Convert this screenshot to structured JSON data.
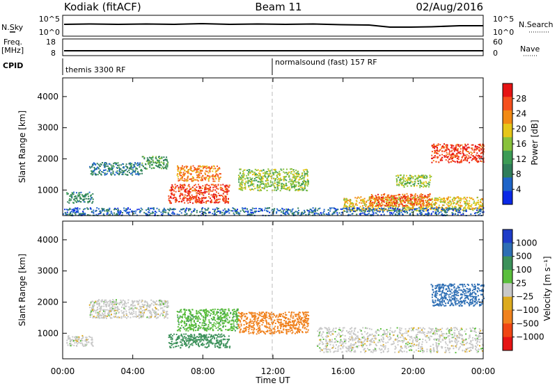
{
  "header": {
    "radar": "Kodiak  (fitACF)",
    "beam": "Beam 11",
    "date": "02/Aug/2016"
  },
  "strips": {
    "noise": {
      "left_label": "N.Sky",
      "left_ticks": [
        "10^5",
        "10^0"
      ],
      "right_ticks": [
        "10^5",
        "10^0"
      ],
      "right_label": "N.Search"
    },
    "freq": {
      "left_label_1": "Freq.",
      "left_label_2": "[MHz]",
      "left_ticks": [
        "18",
        "8"
      ],
      "right_ticks": [
        "60",
        "0"
      ],
      "right_label": "Nave"
    },
    "cpid": {
      "label": "CPID",
      "segments": [
        "themis 3300 RF",
        "normalsound (fast) 157 RF"
      ]
    }
  },
  "colors": {
    "power_scale": [
      "#0a28e6",
      "#1e64c8",
      "#2f7d5a",
      "#3c9b55",
      "#88c23c",
      "#e6c619",
      "#f28a14",
      "#f5501e",
      "#e61414"
    ],
    "velocity_scale": [
      "#1e3cc8",
      "#2d6eb4",
      "#3c915a",
      "#5abe3c",
      "#c8c8c8",
      "#dcaa1e",
      "#f0821e",
      "#f04614",
      "#e61414"
    ]
  },
  "chart_data": [
    {
      "type": "heatmap",
      "title": "",
      "xlabel": "Time UT",
      "ylabel": "Slant Range [km]",
      "xlim": [
        "00:00",
        "00:00"
      ],
      "ylim": [
        180,
        4600
      ],
      "x_ticks": [
        "00:00",
        "04:00",
        "08:00",
        "12:00",
        "16:00",
        "20:00",
        "00:00"
      ],
      "y_ticks": [
        1000,
        2000,
        3000,
        4000
      ],
      "colorbar": {
        "label": "Power [dB]",
        "ticks": [
          4,
          8,
          12,
          16,
          20,
          24,
          28
        ],
        "range": [
          0,
          32
        ]
      },
      "regions": [
        {
          "t_start": 0.2,
          "t_end": 1.7,
          "r_min": 600,
          "r_max": 950,
          "value": 10
        },
        {
          "t_start": 1.5,
          "t_end": 4.5,
          "r_min": 1500,
          "r_max": 1900,
          "value": 8
        },
        {
          "t_start": 4.5,
          "t_end": 6.0,
          "r_min": 1700,
          "r_max": 2100,
          "value": 12
        },
        {
          "t_start": 6.0,
          "t_end": 9.5,
          "r_min": 600,
          "r_max": 1200,
          "value": 28
        },
        {
          "t_start": 6.5,
          "t_end": 9.0,
          "r_min": 1300,
          "r_max": 1800,
          "value": 24
        },
        {
          "t_start": 10.0,
          "t_end": 14.0,
          "r_min": 1000,
          "r_max": 1700,
          "value": 16
        },
        {
          "t_start": 16.0,
          "t_end": 24.0,
          "r_min": 350,
          "r_max": 800,
          "value": 20
        },
        {
          "t_start": 17.5,
          "t_end": 21.0,
          "r_min": 500,
          "r_max": 900,
          "value": 26
        },
        {
          "t_start": 19.0,
          "t_end": 21.0,
          "r_min": 1100,
          "r_max": 1500,
          "value": 16
        },
        {
          "t_start": 21.0,
          "t_end": 24.0,
          "r_min": 1900,
          "r_max": 2500,
          "value": 28
        },
        {
          "t_start": 0.0,
          "t_end": 24.0,
          "r_min": 200,
          "r_max": 450,
          "value": 6
        }
      ]
    },
    {
      "type": "heatmap",
      "title": "",
      "xlabel": "Time UT",
      "ylabel": "Slant Range [km]",
      "xlim": [
        "00:00",
        "00:00"
      ],
      "ylim": [
        180,
        4600
      ],
      "x_ticks": [
        "00:00",
        "04:00",
        "08:00",
        "12:00",
        "16:00",
        "20:00",
        "00:00"
      ],
      "y_ticks": [
        1000,
        2000,
        3000,
        4000
      ],
      "colorbar": {
        "label": "Velocity [m s⁻¹]",
        "ticks": [
          "1000",
          "500",
          "100",
          "25",
          "−25",
          "−100",
          "−500",
          "−1000"
        ]
      },
      "regions": [
        {
          "t_start": 0.2,
          "t_end": 1.7,
          "r_min": 600,
          "r_max": 950,
          "value": 0
        },
        {
          "t_start": 1.5,
          "t_end": 6.0,
          "r_min": 1500,
          "r_max": 2100,
          "value": 0
        },
        {
          "t_start": 6.0,
          "t_end": 9.5,
          "r_min": 550,
          "r_max": 1000,
          "value": 150
        },
        {
          "t_start": 6.5,
          "t_end": 10.0,
          "r_min": 1100,
          "r_max": 1800,
          "value": 80
        },
        {
          "t_start": 10.0,
          "t_end": 14.0,
          "r_min": 1000,
          "r_max": 1700,
          "value": -200
        },
        {
          "t_start": 14.5,
          "t_end": 24.0,
          "r_min": 400,
          "r_max": 1200,
          "value": 0
        },
        {
          "t_start": 21.0,
          "t_end": 24.0,
          "r_min": 1900,
          "r_max": 2600,
          "value": 900
        }
      ]
    }
  ]
}
